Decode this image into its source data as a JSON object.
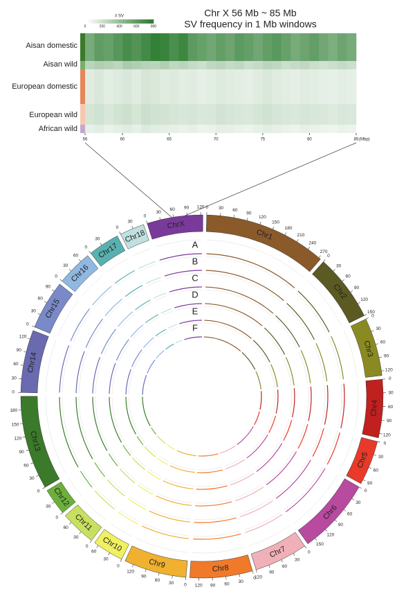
{
  "heatmap": {
    "title": "Chr X 56 Mb ~ 85 Mb",
    "subtitle": "SV frequency in 1 Mb windows",
    "legend_title": "# SV",
    "legend_ticks": [
      0,
      200,
      400,
      600,
      800
    ],
    "legend_lim": [
      0,
      800
    ],
    "legend_color": "#2e7d32",
    "xlim": [
      56,
      85
    ],
    "xticks": [
      56,
      60,
      65,
      70,
      75,
      80,
      85
    ],
    "x_unit": "(Mbp)",
    "groups": [
      {
        "name": "Aisan domestic",
        "color": "#3a7a2a",
        "values": [
          520,
          610,
          580,
          640,
          700,
          660,
          720,
          780,
          760,
          690,
          740,
          620,
          580,
          540,
          600,
          560,
          620,
          590,
          540,
          600,
          630,
          580,
          520,
          560,
          600,
          540,
          500,
          560,
          520
        ]
      },
      {
        "name": "Aisan wild",
        "color": "#7aae6a",
        "values": [
          260,
          300,
          280,
          250,
          320,
          300,
          280,
          260,
          300,
          240,
          260,
          220,
          200,
          240,
          260,
          220,
          240,
          200,
          220,
          260,
          240,
          200,
          220,
          240,
          200,
          180,
          200,
          220,
          200
        ]
      },
      {
        "name": "European domestic",
        "color": "#e8865a",
        "values": [
          120,
          140,
          110,
          130,
          150,
          120,
          160,
          140,
          120,
          130,
          110,
          120,
          100,
          110,
          130,
          120,
          110,
          100,
          120,
          140,
          120,
          110,
          100,
          120,
          110,
          100,
          90,
          110,
          100
        ]
      },
      {
        "name": "European wild",
        "color": "#f6c8b0",
        "values": [
          160,
          180,
          150,
          170,
          190,
          160,
          200,
          180,
          170,
          160,
          150,
          160,
          140,
          150,
          170,
          160,
          150,
          140,
          160,
          180,
          160,
          150,
          140,
          160,
          150,
          140,
          130,
          150,
          140
        ]
      },
      {
        "name": "African wild",
        "color": "#c0a8d0",
        "values": [
          90,
          110,
          80,
          100,
          120,
          90,
          130,
          110,
          100,
          90,
          80,
          90,
          70,
          80,
          100,
          90,
          80,
          70,
          90,
          110,
          90,
          80,
          70,
          90,
          80,
          70,
          60,
          80,
          70
        ]
      }
    ]
  },
  "circos": {
    "track_labels": [
      "A",
      "B",
      "C",
      "D",
      "E",
      "F"
    ],
    "chromosomes": [
      {
        "name": "Chr1",
        "length": 275,
        "color": "#8a5a2b",
        "ticks": [
          0,
          30,
          60,
          90,
          120,
          150,
          180,
          210,
          240,
          270
        ]
      },
      {
        "name": "Chr2",
        "length": 150,
        "color": "#5a5a22",
        "ticks": [
          0,
          30,
          60,
          90,
          120,
          150
        ]
      },
      {
        "name": "Chr3",
        "length": 130,
        "color": "#8a8a22",
        "ticks": [
          0,
          30,
          60,
          90,
          120
        ]
      },
      {
        "name": "Chr4",
        "length": 130,
        "color": "#c0201e",
        "ticks": [
          0,
          30,
          60,
          90,
          120
        ]
      },
      {
        "name": "Chr5",
        "length": 100,
        "color": "#e83a2a",
        "ticks": [
          0,
          30,
          60,
          90
        ]
      },
      {
        "name": "Chr6",
        "length": 170,
        "color": "#b84aa0",
        "ticks": [
          0,
          30,
          60,
          90,
          120,
          150
        ]
      },
      {
        "name": "Chr7",
        "length": 120,
        "color": "#f0b0b8",
        "ticks": [
          0,
          30,
          60,
          90,
          120
        ]
      },
      {
        "name": "Chr8",
        "length": 140,
        "color": "#f07a2a",
        "ticks": [
          0,
          30,
          60,
          90,
          120
        ]
      },
      {
        "name": "Chr9",
        "length": 140,
        "color": "#f0b030",
        "ticks": [
          0,
          30,
          60,
          90,
          120
        ]
      },
      {
        "name": "Chr10",
        "length": 70,
        "color": "#f0f060",
        "ticks": [
          0,
          30,
          60
        ]
      },
      {
        "name": "Chr11",
        "length": 80,
        "color": "#c8e060",
        "ticks": [
          0,
          30,
          60
        ]
      },
      {
        "name": "Chr12",
        "length": 60,
        "color": "#6cb03a",
        "ticks": [
          0,
          30
        ]
      },
      {
        "name": "Chr13",
        "length": 210,
        "color": "#3a7a2a",
        "ticks": [
          0,
          30,
          60,
          90,
          120,
          150,
          180
        ]
      },
      {
        "name": "Chr14",
        "length": 140,
        "color": "#6a6ab0",
        "ticks": [
          0,
          30,
          60,
          90,
          120
        ]
      },
      {
        "name": "Chr15",
        "length": 110,
        "color": "#7a8ac8",
        "ticks": [
          0,
          30,
          60,
          90
        ]
      },
      {
        "name": "Chr16",
        "length": 80,
        "color": "#90b8e0",
        "ticks": [
          0,
          30,
          60
        ]
      },
      {
        "name": "Chr17",
        "length": 70,
        "color": "#58b0b0",
        "ticks": [
          0,
          30
        ]
      },
      {
        "name": "Chr18",
        "length": 55,
        "color": "#c0e0e0",
        "ticks": [
          0,
          30
        ]
      },
      {
        "name": "ChrX",
        "length": 125,
        "color": "#7a3a9a",
        "ticks": [
          0,
          30,
          60,
          90,
          120
        ]
      }
    ]
  }
}
